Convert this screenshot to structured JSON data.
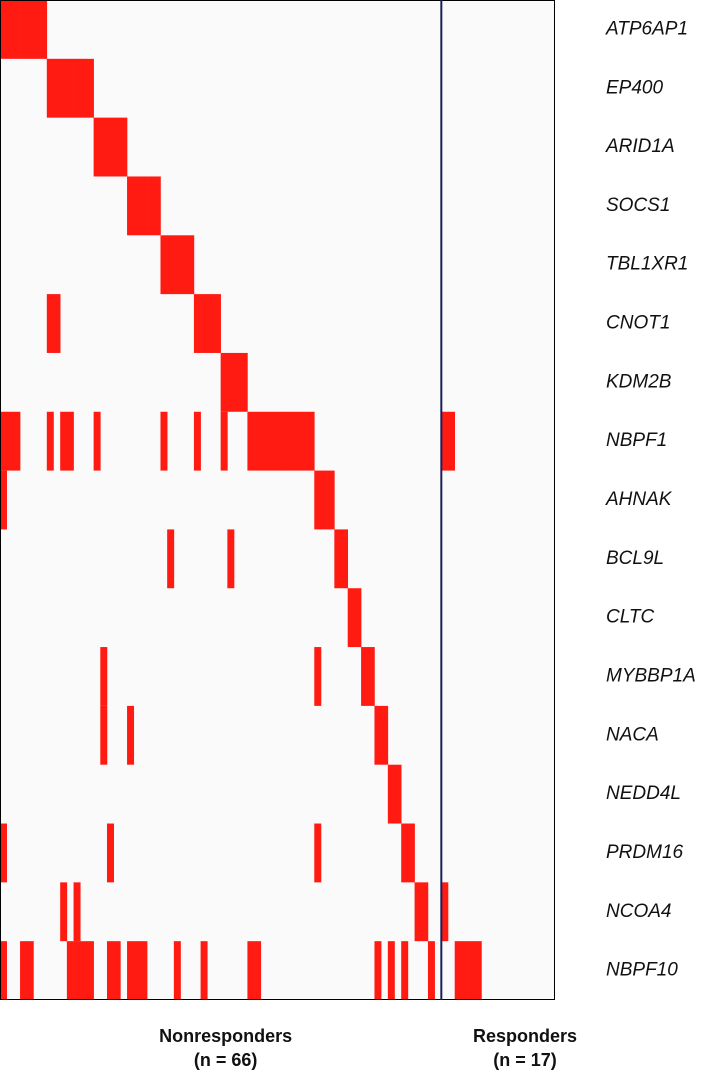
{
  "genes": [
    {
      "name": "ATP6AP1",
      "mutated": [
        0,
        1,
        2,
        3,
        4,
        5,
        6
      ]
    },
    {
      "name": "EP400",
      "mutated": [
        7,
        8,
        9,
        10,
        11,
        12,
        13
      ]
    },
    {
      "name": "ARID1A",
      "mutated": [
        14,
        15,
        16,
        17,
        18
      ]
    },
    {
      "name": "SOCS1",
      "mutated": [
        19,
        20,
        21,
        22,
        23
      ]
    },
    {
      "name": "TBL1XR1",
      "mutated": [
        24,
        25,
        26,
        27,
        28
      ]
    },
    {
      "name": "CNOT1",
      "mutated": [
        7,
        8,
        29,
        30,
        31,
        32
      ]
    },
    {
      "name": "KDM2B",
      "mutated": [
        33,
        34,
        35,
        36
      ]
    },
    {
      "name": "NBPF1",
      "mutated": [
        0,
        1,
        2,
        7,
        9,
        10,
        14,
        24,
        29,
        33,
        37,
        38,
        39,
        40,
        41,
        42,
        43,
        44,
        45,
        46,
        66,
        67
      ]
    },
    {
      "name": "AHNAK",
      "mutated": [
        0,
        47,
        48,
        49
      ]
    },
    {
      "name": "BCL9L",
      "mutated": [
        25,
        34,
        50,
        51
      ]
    },
    {
      "name": "CLTC",
      "mutated": [
        52,
        53
      ]
    },
    {
      "name": "MYBBP1A",
      "mutated": [
        15,
        47,
        54,
        55
      ]
    },
    {
      "name": "NACA",
      "mutated": [
        15,
        19,
        56,
        57
      ]
    },
    {
      "name": "NEDD4L",
      "mutated": [
        58,
        59
      ]
    },
    {
      "name": "PRDM16",
      "mutated": [
        0,
        16,
        47,
        60,
        61
      ]
    },
    {
      "name": "NCOA4",
      "mutated": [
        9,
        11,
        62,
        63,
        66
      ]
    },
    {
      "name": "NBPF10",
      "mutated": [
        0,
        3,
        4,
        10,
        11,
        12,
        13,
        16,
        17,
        19,
        20,
        21,
        26,
        30,
        37,
        38,
        56,
        58,
        60,
        64,
        68,
        69,
        70,
        71
      ]
    }
  ],
  "groups": [
    {
      "label": "Nonresponders",
      "n_label": "(n = 66)",
      "n": 66
    },
    {
      "label": "Responders",
      "n_label": "(n = 17)",
      "n": 17
    }
  ],
  "color": "#ff1a12"
}
